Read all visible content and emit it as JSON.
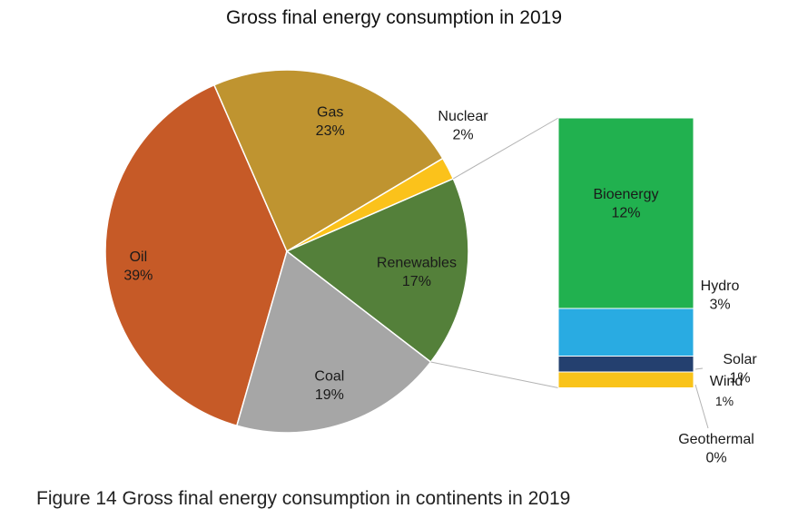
{
  "chart_data": [
    {
      "type": "pie",
      "title": "Gross final energy consumption in 2019",
      "slices": [
        {
          "label": "Oil",
          "value": 39,
          "value_label": "39%",
          "color": "#C65A27"
        },
        {
          "label": "Gas",
          "value": 23,
          "value_label": "23%",
          "color": "#BF9430"
        },
        {
          "label": "Nuclear",
          "value": 2,
          "value_label": "2%",
          "color": "#FBC21B"
        },
        {
          "label": "Renewables",
          "value": 17,
          "value_label": "17%",
          "color": "#54803A"
        },
        {
          "label": "Coal",
          "value": 19,
          "value_label": "19%",
          "color": "#A6A6A6"
        }
      ]
    },
    {
      "type": "bar",
      "stacked": true,
      "breakdown_of": "Renewables",
      "segments": [
        {
          "label": "Bioenergy",
          "value": 12,
          "value_label": "12%",
          "color": "#21B14F"
        },
        {
          "label": "Hydro",
          "value": 3,
          "value_label": "3%",
          "color": "#29ABE2"
        },
        {
          "label": "Solar",
          "value": 1,
          "value_label": "1%",
          "color": "#24406F"
        },
        {
          "label": "Wind",
          "value": 1,
          "value_label": "1%",
          "color": "#F9C31A"
        },
        {
          "label": "Geothermal",
          "value": 0,
          "value_label": "0%",
          "color": "#F3C21B"
        }
      ]
    }
  ],
  "caption": "Figure 14 Gross final energy consumption in continents in 2019"
}
